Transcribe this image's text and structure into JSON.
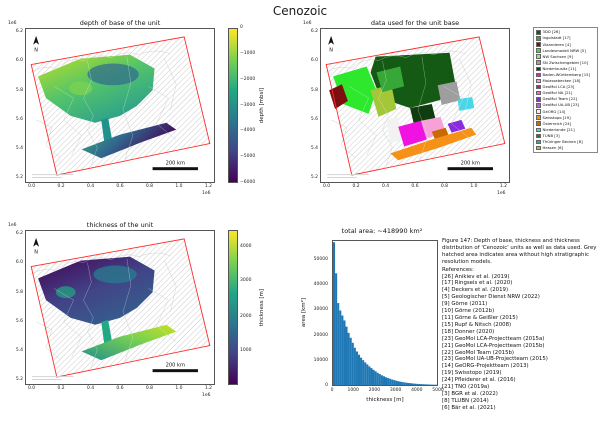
{
  "figure_title": "Cenozoic",
  "map_common": {
    "north_label": "N",
    "scale_bar_label": "200 km",
    "x_exp": "1e6",
    "y_exp": "1e6"
  },
  "panels": {
    "depth": {
      "title": "depth of base of the unit",
      "x_ticks": [
        "0.0",
        "0.2",
        "0.4",
        "0.6",
        "0.8",
        "1.0",
        "1.2"
      ],
      "y_ticks": [
        "6.2",
        "6.0",
        "5.8",
        "5.6",
        "5.4",
        "5.2"
      ],
      "colorbar": {
        "label": "depth [mbsl]",
        "gradient": [
          "#fde725",
          "#7ad151",
          "#22a884",
          "#2a788e",
          "#414487",
          "#440154"
        ],
        "ticks": [
          {
            "label": "0",
            "pos": 0
          },
          {
            "label": "−1000",
            "pos": 0.167
          },
          {
            "label": "−2000",
            "pos": 0.333
          },
          {
            "label": "−3000",
            "pos": 0.5
          },
          {
            "label": "−4000",
            "pos": 0.667
          },
          {
            "label": "−5000",
            "pos": 0.833
          },
          {
            "label": "−6000",
            "pos": 1
          }
        ]
      }
    },
    "data_used": {
      "title": "data used for the unit base",
      "x_ticks": [
        "0.0",
        "0.2",
        "0.4",
        "0.6",
        "0.8",
        "1.0",
        "1.2"
      ],
      "y_ticks": [
        "6.2",
        "6.0",
        "5.8",
        "5.6",
        "5.4",
        "5.2"
      ],
      "legend": [
        {
          "label": "3DD [26]",
          "color": "#145a14"
        },
        {
          "label": "Ingolstadt [17]",
          "color": "#37a837"
        },
        {
          "label": "Vlaanderen [4]",
          "color": "#7c0f0f"
        },
        {
          "label": "Landesmodell NRW [5]",
          "color": "#2ee82e"
        },
        {
          "label": "NW Sachsen [9]",
          "color": "#a8e05f"
        },
        {
          "label": "SN Zwischengebiet [10]",
          "color": "#9e9e9e"
        },
        {
          "label": "Niederlausitz [11]",
          "color": "#0f3d0f"
        },
        {
          "label": "Baden-Württemberg [15]",
          "color": "#f012e0"
        },
        {
          "label": "Molassebecken [18]",
          "color": "#f8a0d8"
        },
        {
          "label": "GeoMol LCA [23]",
          "color": "#c71585"
        },
        {
          "label": "GeoMol NA [21]",
          "color": "#e670c9"
        },
        {
          "label": "GeoMol Team [22]",
          "color": "#8a2be2"
        },
        {
          "label": "GeoMol UA-UB [23]",
          "color": "#b565d8"
        },
        {
          "label": "GeORG [14]",
          "color": "#f2f2f2"
        },
        {
          "label": "Swisstopo [19]",
          "color": "#f59116"
        },
        {
          "label": "Österreich [24]",
          "color": "#c96a00"
        },
        {
          "label": "Niederlande [21]",
          "color": "#49d7e8"
        },
        {
          "label": "TUNB [3]",
          "color": "#4a6b1f"
        },
        {
          "label": "Thüringer Becken [8]",
          "color": "#20b2aa"
        },
        {
          "label": "Hessen [6]",
          "color": "#a4c639"
        }
      ]
    },
    "thickness": {
      "title": "thickness of the unit",
      "x_ticks": [
        "0.0",
        "0.2",
        "0.4",
        "0.6",
        "0.8",
        "1.0",
        "1.2"
      ],
      "y_ticks": [
        "6.2",
        "6.0",
        "5.8",
        "5.6",
        "5.4",
        "5.2"
      ],
      "colorbar": {
        "label": "thickness [m]",
        "gradient": [
          "#fde725",
          "#7ad151",
          "#22a884",
          "#2a788e",
          "#414487",
          "#440154"
        ],
        "ticks": [
          {
            "label": "4000",
            "pos": 0.11
          },
          {
            "label": "3000",
            "pos": 0.33
          },
          {
            "label": "2000",
            "pos": 0.56
          },
          {
            "label": "1000",
            "pos": 0.78
          }
        ]
      }
    },
    "histogram": {
      "title": "total area: ~418990 km²",
      "xlabel": "thickness [m]",
      "ylabel": "area [km²]"
    }
  },
  "caption": {
    "text": "Figure 147: Depth of base, thickness and thickness distribution of 'Cenozoic' units as well as data used. Grey hatched area indicates area without high stratigraphic resolution models.",
    "references_heading": "References:",
    "references": [
      "[26] Anikiev et al. (2019)",
      "[17] Ringseis et al. (2020)",
      "[4] Deckers et al. (2019)",
      "[5] Geologischer Dienst NRW (2022)",
      "[9] Görne (2011)",
      "[10] Görne (2012b)",
      "[11] Görne & Geißler (2015)",
      "[15] Rupf & Nitsch (2008)",
      "[18] Donner (2020)",
      "[23] GeoMol LCA-Projectteam (2015a)",
      "[21] GeoMol LCA-Projectteam (2015b)",
      "[22] GeoMol Team (2015b)",
      "[23] GeoMol UA-UB-Projectteam (2015)",
      "[14] GeORG-Projektteam (2013)",
      "[19] Swisstopo (2019)",
      "[24] Pfleiderer et al. (2016)",
      "[21] TNO (2019a)",
      "[3] BGR et al. (2022)",
      "[8] TLUBN (2014)",
      "[6] Bär et al. (2021)"
    ]
  },
  "chart_data": [
    {
      "type": "heatmap",
      "subtype": "map",
      "title": "depth of base of the unit",
      "colormap": "viridis",
      "colorbar_label": "depth [mbsl]",
      "colorbar_ticks": [
        0,
        -1000,
        -2000,
        -3000,
        -4000,
        -5000,
        -6000
      ],
      "x_tick_values_1e6": [
        0.0,
        0.2,
        0.4,
        0.6,
        0.8,
        1.0,
        1.2
      ],
      "y_tick_values_1e6": [
        5.2,
        5.4,
        5.6,
        5.8,
        6.0,
        6.2
      ],
      "scale_bar": "200 km"
    },
    {
      "type": "heatmap",
      "subtype": "categorical-map",
      "title": "data used for the unit base",
      "categories": [
        "3DD [26]",
        "Ingolstadt [17]",
        "Vlaanderen [4]",
        "Landesmodell NRW [5]",
        "NW Sachsen [9]",
        "SN Zwischengebiet [10]",
        "Niederlausitz [11]",
        "Baden-Württemberg [15]",
        "Molassebecken [18]",
        "GeoMol LCA [23]",
        "GeoMol NA [21]",
        "GeoMol Team [22]",
        "GeoMol UA-UB [23]",
        "GeORG [14]",
        "Swisstopo [19]",
        "Österreich [24]",
        "Niederlande [21]",
        "TUNB [3]",
        "Thüringer Becken [8]",
        "Hessen [6]"
      ],
      "x_tick_values_1e6": [
        0.0,
        0.2,
        0.4,
        0.6,
        0.8,
        1.0,
        1.2
      ],
      "y_tick_values_1e6": [
        5.2,
        5.4,
        5.6,
        5.8,
        6.0,
        6.2
      ],
      "scale_bar": "200 km",
      "legend_position": "right"
    },
    {
      "type": "heatmap",
      "subtype": "map",
      "title": "thickness of the unit",
      "colormap": "viridis",
      "colorbar_label": "thickness [m]",
      "colorbar_ticks": [
        4000,
        3000,
        2000,
        1000
      ],
      "x_tick_values_1e6": [
        0.0,
        0.2,
        0.4,
        0.6,
        0.8,
        1.0,
        1.2
      ],
      "y_tick_values_1e6": [
        5.2,
        5.4,
        5.6,
        5.8,
        6.0,
        6.2
      ],
      "scale_bar": "200 km"
    },
    {
      "type": "bar",
      "subtype": "histogram",
      "title": "total area: ~418990 km²",
      "xlabel": "thickness [m]",
      "ylabel": "area [km²]",
      "color": "#1f77b4",
      "bin_start": 0,
      "bin_width": 100,
      "xlim": [
        0,
        5000
      ],
      "ylim": [
        0,
        58000
      ],
      "x_ticks": [
        0,
        1000,
        2000,
        3000,
        4000,
        5000
      ],
      "y_ticks": [
        0,
        10000,
        20000,
        30000,
        40000,
        50000
      ],
      "values": [
        57500,
        45000,
        33000,
        30000,
        28000,
        26000,
        23500,
        21000,
        19000,
        17000,
        15000,
        13500,
        12200,
        11000,
        10000,
        9100,
        8300,
        7500,
        6800,
        6100,
        5500,
        4900,
        4400,
        3900,
        3500,
        3100,
        2800,
        2500,
        2200,
        1950,
        1700,
        1500,
        1320,
        1160,
        1020,
        900,
        790,
        700,
        610,
        530,
        460,
        400,
        350,
        300,
        260,
        225,
        195,
        165,
        140,
        120
      ],
      "grid": false,
      "legend": "none"
    }
  ]
}
